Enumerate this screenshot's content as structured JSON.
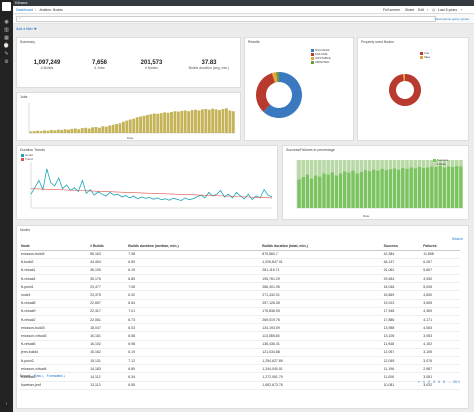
{
  "app": {
    "name": "Kibana"
  },
  "nav": {
    "icons": [
      "discover-icon",
      "visualize-icon",
      "dashboard-icon",
      "timelion-icon",
      "dev-tools-icon",
      "management-icon"
    ]
  },
  "breadcrumb": {
    "root": "Dashboard",
    "current": "Jenkins: Nodes"
  },
  "topnav": {
    "full_screen": "Full screen",
    "share": "Share",
    "edit": "Edit",
    "time": "Last 5 years"
  },
  "query": {
    "placeholder": "*",
    "hint": "Uses lucene query syntax"
  },
  "filters": {
    "add_label": "Add a filter"
  },
  "colors": {
    "success": "#3a78c0",
    "failure": "#b83a2f",
    "bar": "#c4b357",
    "line": "#1aa6b7",
    "trend": "#d9534f",
    "green": "#7cc361"
  },
  "summary": {
    "title": "Summary",
    "metrics": [
      {
        "value": "1,097,249",
        "label": "# Builds"
      },
      {
        "value": "7,656",
        "label": "# Jobs"
      },
      {
        "value": "201,573",
        "label": "# Nodes"
      },
      {
        "value": "37.83",
        "label": "Builds duration (avg, min.)"
      }
    ]
  },
  "results": {
    "title": "Results",
    "legend": [
      "SUCCESS",
      "FAILURE",
      "UNSTABLE",
      "ABORTED"
    ],
    "legend_colors": [
      "#3a78c0",
      "#b83a2f",
      "#e8a33a",
      "#6c9a3a"
    ],
    "chart_data": {
      "type": "pie",
      "labels": [
        "SUCCESS",
        "FAILURE",
        "UNSTABLE",
        "ABORTED"
      ],
      "values": [
        62,
        33,
        3,
        2
      ]
    }
  },
  "property": {
    "title": "Property used Nodes",
    "legend": [
      "true",
      "false"
    ],
    "legend_colors": [
      "#b83a2f",
      "#e8a33a"
    ],
    "chart_data": {
      "type": "pie",
      "labels": [
        "true",
        "false"
      ],
      "values": [
        98,
        2
      ]
    }
  },
  "jobs": {
    "title": "Jobs",
    "xlabel": "Date",
    "chart_data": {
      "type": "bar",
      "ylim": [
        0,
        80
      ],
      "values": [
        4,
        5,
        6,
        5,
        7,
        6,
        8,
        7,
        9,
        8,
        10,
        9,
        11,
        12,
        10,
        13,
        14,
        12,
        15,
        16,
        14,
        18,
        17,
        20,
        22,
        24,
        26,
        30,
        33,
        36,
        38,
        42,
        44,
        46,
        48,
        50,
        52,
        51,
        53,
        55,
        54,
        56,
        58,
        57,
        59,
        60,
        58,
        61,
        62,
        60,
        63,
        64,
        62,
        65,
        63,
        61,
        64,
        66,
        60,
        58
      ]
    }
  },
  "duration": {
    "title": "Duration Trends",
    "legend": [
      "Count",
      "Trend"
    ],
    "chart_data": {
      "type": "line",
      "ylim": [
        0,
        100
      ],
      "series": [
        {
          "name": "Count",
          "values": [
            30,
            45,
            60,
            40,
            85,
            55,
            48,
            65,
            42,
            50,
            38,
            44,
            36,
            60,
            32,
            40,
            28,
            35,
            30,
            26,
            34,
            28,
            30,
            24,
            27,
            22,
            26,
            20,
            24,
            21,
            23,
            19,
            22,
            18,
            20,
            17,
            21,
            19,
            16,
            22,
            18,
            20,
            24,
            28,
            22,
            34,
            26,
            30,
            38,
            24,
            30,
            22,
            34,
            26,
            20,
            30,
            18,
            26,
            22,
            40,
            28,
            24
          ]
        },
        {
          "name": "Trend",
          "values": [
            42,
            40,
            38,
            36,
            34,
            32,
            30,
            28,
            26,
            24,
            22
          ]
        }
      ]
    }
  },
  "successpct": {
    "title": "Success/Failures in percentage",
    "xlabel": "Date",
    "legend": [
      "Success",
      "Failure"
    ],
    "chart_data": {
      "type": "bar",
      "ylim": [
        0,
        100
      ],
      "series": [
        {
          "name": "Success",
          "values": [
            60,
            65,
            70,
            62,
            68,
            66,
            72,
            70,
            74,
            68,
            72,
            76,
            74,
            78,
            72,
            75,
            79,
            77,
            80,
            78,
            82,
            79,
            81,
            83,
            80,
            84,
            82,
            85,
            83,
            86,
            84,
            85,
            87,
            86,
            88,
            85,
            87,
            86,
            88,
            87
          ]
        },
        {
          "name": "Failure",
          "values": [
            40,
            35,
            30,
            38,
            32,
            34,
            28,
            30,
            26,
            32,
            28,
            24,
            26,
            22,
            28,
            25,
            21,
            23,
            20,
            22,
            18,
            21,
            19,
            17,
            20,
            16,
            18,
            15,
            17,
            14,
            16,
            15,
            13,
            14,
            12,
            15,
            13,
            14,
            12,
            13
          ]
        }
      ]
    }
  },
  "nodes": {
    "title": "Nodes",
    "search_link": "Search",
    "headers": [
      "Node",
      "# Builds",
      "Builds duration (median, min.)",
      "Builds duration (total, min.)",
      "Success",
      "Failures"
    ],
    "rows": [
      [
        "ericsson-build4",
        "55,163",
        "7.98",
        "879,860.7",
        "42,384",
        "11,898"
      ],
      [
        "ft-build2",
        "44,404",
        "6.59",
        "1,026,847.01",
        "46,137",
        "6,267"
      ],
      [
        "ft-virtual1",
        "36,109",
        "6.19",
        "281,116.71",
        "31,062",
        "5,667"
      ],
      [
        "ft-virtual4",
        "35,176",
        "6.85",
        "195,761.29",
        "29,484",
        "4,930"
      ],
      [
        "ft-posh1",
        "23,477",
        "7.08",
        "286,401.95",
        "18,046",
        "5,006"
      ],
      [
        "node1",
        "23,375",
        "6.32",
        "271,432.01",
        "16,869",
        "4,830"
      ],
      [
        "ft-virtual8",
        "22,657",
        "6.54",
        "257,126.35",
        "19,023",
        "3,605"
      ],
      [
        "ft-virtual9",
        "22,317",
        "7.01",
        "175,836.05",
        "17,948",
        "4,369"
      ],
      [
        "ft-virtual2",
        "22,061",
        "6.73",
        "269,019.76",
        "17,886",
        "4,171"
      ],
      [
        "ericsson-build3",
        "18,047",
        "6.03",
        "134,193.09",
        "13,958",
        "4,063"
      ],
      [
        "ericsson-virtual3",
        "16,161",
        "6.58",
        "113,085.65",
        "13,106",
        "3,053"
      ],
      [
        "ft-virtual6",
        "16,102",
        "6.98",
        "138,436.31",
        "11,948",
        "4,152"
      ],
      [
        "jenn-build4",
        "15,162",
        "6.19",
        "121,034.88",
        "12,057",
        "3,105"
      ],
      [
        "ft-posh2",
        "15,131",
        "7.12",
        "1,254,627.89",
        "12,055",
        "3,076"
      ],
      [
        "ericsson-virtual4",
        "14,183",
        "6.89",
        "1,244,040.01",
        "11,196",
        "2,987"
      ],
      [
        "ft-virtual5",
        "14,112",
        "6.34",
        "1,272,061.79",
        "11,006",
        "3,081"
      ],
      [
        "fuweiser-jenf",
        "13,113",
        "6.55",
        "1,652,673.76",
        "10,081",
        "3,032"
      ]
    ],
    "export_label": "Export:",
    "export_raw": "Raw",
    "export_formatted": "Formatted",
    "pages": [
      "«",
      "1",
      "2",
      "3",
      "4",
      "5",
      "...",
      "20",
      "»"
    ]
  }
}
